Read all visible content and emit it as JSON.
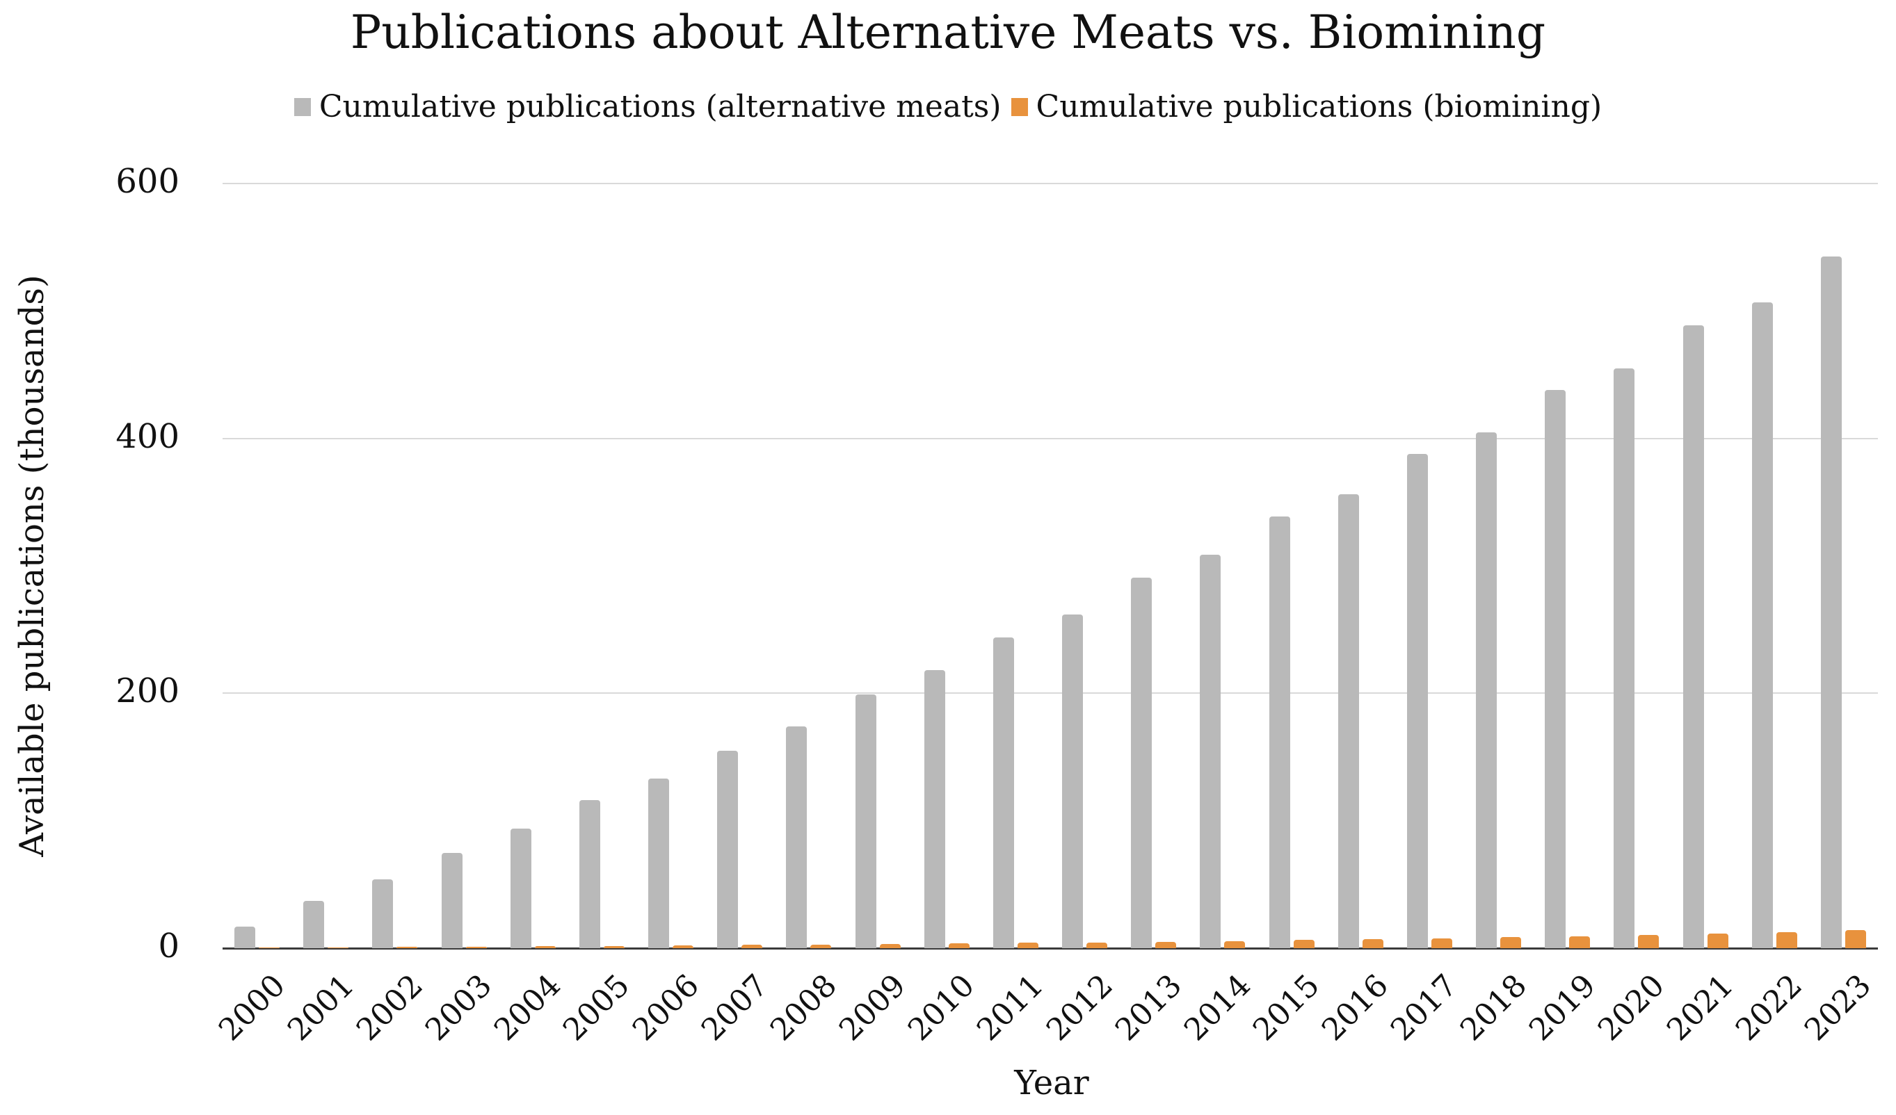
{
  "title": "Publications about Alternative Meats vs. Biomining",
  "legend": {
    "items": [
      {
        "label": "Cumulative publications (alternative meats)",
        "color": "#b9b9b9"
      },
      {
        "label": "Cumulative publications (biomining)",
        "color": "#e8923d"
      }
    ]
  },
  "colors": {
    "alt_meats_bar": "#b9b9b9",
    "biomining_bar": "#e8923d",
    "gridline": "#d9d9d9",
    "axis_line": "#3b3b3b",
    "text": "#111111"
  },
  "chart_data": {
    "type": "bar",
    "title": "Publications about Alternative Meats vs. Biomining",
    "xlabel": "Year",
    "ylabel": "Available publications (thousands)",
    "ylim": [
      0,
      600
    ],
    "yticks": [
      0,
      200,
      400,
      600
    ],
    "grid": "horizontal",
    "legend_position": "top",
    "categories": [
      "2000",
      "2001",
      "2002",
      "2003",
      "2004",
      "2005",
      "2006",
      "2007",
      "2008",
      "2009",
      "2010",
      "2011",
      "2012",
      "2013",
      "2014",
      "2015",
      "2016",
      "2017",
      "2018",
      "2019",
      "2020",
      "2021",
      "2022",
      "2023"
    ],
    "series": [
      {
        "name": "Cumulative publications (alternative meats)",
        "color": "#b9b9b9",
        "values": [
          17,
          37,
          54,
          75,
          94,
          116,
          133,
          155,
          174,
          199,
          218,
          244,
          262,
          291,
          309,
          339,
          356,
          388,
          405,
          438,
          455,
          489,
          507,
          543
        ]
      },
      {
        "name": "Cumulative publications (biomining)",
        "color": "#e8923d",
        "values": [
          0.4,
          0.7,
          1.0,
          1.3,
          1.6,
          1.9,
          2.2,
          2.5,
          2.9,
          3.3,
          3.7,
          4.1,
          4.6,
          5.1,
          5.7,
          6.3,
          7.0,
          7.7,
          8.5,
          9.4,
          10.4,
          11.5,
          12.8,
          14.3
        ]
      }
    ]
  }
}
